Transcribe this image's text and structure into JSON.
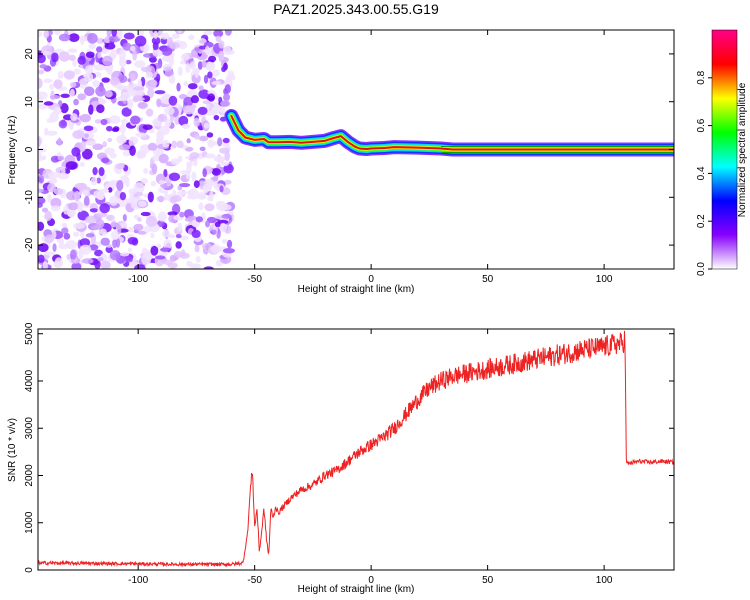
{
  "figure": {
    "title": "PAZ1.2025.343.00.55.G19"
  },
  "colors": {
    "axis": "#000000",
    "snr_line": "#ee2222",
    "plot_bg": "#ffffff",
    "ridge_core": "#dd1111"
  },
  "chart_data": [
    {
      "type": "heatmap",
      "name": "spectrogram",
      "title": "PAZ1.2025.343.00.55.G19",
      "xlabel": "Height of straight line (km)",
      "ylabel": "Frequency (Hz)",
      "xlim": [
        -143,
        130
      ],
      "ylim": [
        -25,
        25
      ],
      "x_ticks": [
        -100,
        -50,
        0,
        50,
        100
      ],
      "y_ticks": [
        -20,
        -10,
        0,
        10,
        20
      ],
      "x_tick_labels": [
        "-100",
        "-50",
        "0",
        "50",
        "100"
      ],
      "y_tick_labels": [
        "-20",
        "-10",
        "0",
        "10",
        "20"
      ],
      "noise_region_x": [
        -143,
        -60
      ],
      "ridge": {
        "x": [
          -60,
          -57,
          -54,
          -50,
          -46,
          -44,
          -40,
          -35,
          -30,
          -25,
          -20,
          -16,
          -13,
          -10,
          -7,
          -5,
          -2,
          0,
          5,
          10,
          20,
          30,
          35,
          50,
          80,
          110,
          130
        ],
        "freq": [
          7,
          4,
          2.5,
          2,
          2.2,
          1.5,
          1.5,
          1.6,
          1.4,
          1.6,
          1.8,
          2.4,
          2.8,
          1.6,
          0.6,
          0.2,
          0.1,
          0.2,
          0.3,
          0.5,
          0.4,
          0.2,
          0.0,
          0.0,
          0.0,
          0.0,
          0.0
        ]
      },
      "colorbar": {
        "label": "Normalized spectral amplitude",
        "range": [
          0,
          1
        ],
        "ticks": [
          0.0,
          0.2,
          0.4,
          0.6,
          0.8
        ],
        "tick_labels": [
          "0.0",
          "0.2",
          "0.4",
          "0.6",
          "0.8"
        ],
        "colormap": [
          "#ffffff",
          "#8800ff",
          "#0000ff",
          "#00ffff",
          "#00ff00",
          "#ffff00",
          "#ff0000",
          "#ff0088"
        ]
      }
    },
    {
      "type": "line",
      "name": "snr",
      "title": "",
      "xlabel": "Height of straight line (km)",
      "ylabel": "SNR (10 * v/v)",
      "xlim": [
        -143,
        130
      ],
      "ylim": [
        0,
        5100
      ],
      "x_ticks": [
        -100,
        -50,
        0,
        50,
        100
      ],
      "y_ticks": [
        0,
        1000,
        2000,
        3000,
        4000,
        5000
      ],
      "x_tick_labels": [
        "-100",
        "-50",
        "0",
        "50",
        "100"
      ],
      "y_tick_labels": [
        "0",
        "1000",
        "2000",
        "3000",
        "4000",
        "5000"
      ],
      "series": [
        {
          "name": "SNR",
          "x": [
            -143,
            -120,
            -100,
            -80,
            -60,
            -55,
            -53,
            -52,
            -51,
            -50,
            -49,
            -48,
            -47,
            -46,
            -45,
            -44,
            -43,
            -42,
            -41,
            -40,
            -35,
            -30,
            -25,
            -20,
            -15,
            -10,
            -5,
            0,
            5,
            10,
            15,
            20,
            25,
            30,
            35,
            40,
            50,
            60,
            70,
            80,
            90,
            100,
            105,
            108,
            109,
            109.5,
            110,
            115,
            120,
            125,
            130
          ],
          "y": [
            150,
            140,
            130,
            120,
            120,
            150,
            800,
            1600,
            2150,
            900,
            1300,
            400,
            800,
            1300,
            700,
            300,
            1300,
            1100,
            1350,
            1200,
            1500,
            1700,
            1800,
            2000,
            2100,
            2300,
            2500,
            2650,
            2800,
            3000,
            3300,
            3600,
            3850,
            4000,
            4100,
            4150,
            4250,
            4350,
            4450,
            4550,
            4650,
            4720,
            4780,
            4800,
            4900,
            2300,
            2250,
            2300,
            2280,
            2300,
            2280
          ]
        }
      ]
    }
  ]
}
